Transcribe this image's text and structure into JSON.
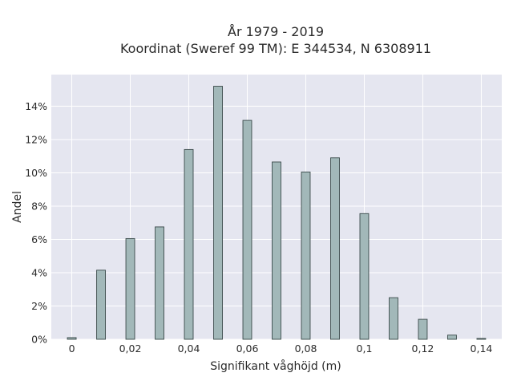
{
  "chart_data": {
    "type": "bar",
    "title_lines": [
      "År 1979 - 2019",
      "Koordinat (Sweref 99 TM): E 344534, N 6308911"
    ],
    "xlabel": "Signifikant våghöjd (m)",
    "ylabel": "Andel",
    "x": [
      0.0,
      0.01,
      0.02,
      0.03,
      0.04,
      0.05,
      0.06,
      0.07,
      0.08,
      0.09,
      0.1,
      0.11,
      0.12,
      0.13,
      0.14
    ],
    "values": [
      0.1,
      4.15,
      6.05,
      6.75,
      11.4,
      15.2,
      13.15,
      10.65,
      10.05,
      10.9,
      7.55,
      2.5,
      1.2,
      0.25,
      0.05
    ],
    "xlim": [
      -0.007,
      0.147
    ],
    "ylim": [
      0,
      15.9
    ],
    "bar_width": 0.003,
    "x_ticks": [
      0,
      0.02,
      0.04,
      0.06,
      0.08,
      0.1,
      0.12,
      0.14
    ],
    "x_tick_labels": [
      "0",
      "0,02",
      "0,04",
      "0,06",
      "0,08",
      "0,1",
      "0,12",
      "0,14"
    ],
    "y_ticks": [
      0,
      2,
      4,
      6,
      8,
      10,
      12,
      14
    ],
    "y_tick_labels": [
      "0%",
      "2%",
      "4%",
      "6%",
      "8%",
      "10%",
      "12%",
      "14%"
    ],
    "grid": true,
    "colors": {
      "plot_bg": "#e5e6f0",
      "bar_fill": "#a2b8b9",
      "bar_stroke": "#3a4a4a",
      "grid": "#ffffff"
    }
  }
}
